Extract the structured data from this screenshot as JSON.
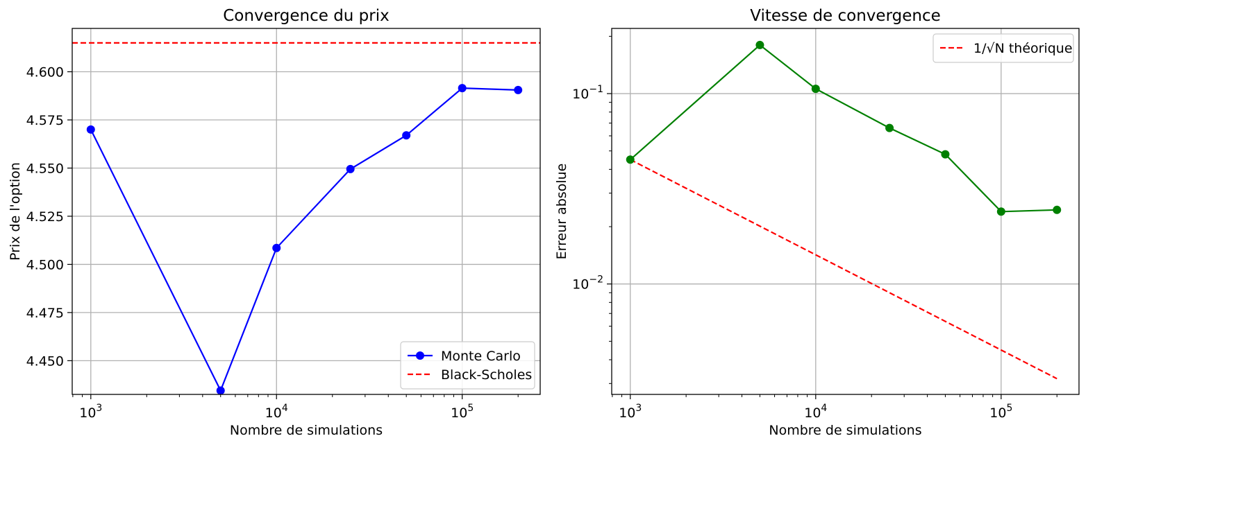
{
  "chart_data": [
    {
      "type": "line",
      "title": "Convergence du prix",
      "xlabel": "Nombre de simulations",
      "ylabel": "Prix de l'option",
      "x_scale": "log",
      "y_scale": "linear",
      "xlim": [
        794,
        263000
      ],
      "ylim": [
        4.4325,
        4.6225
      ],
      "x_ticks": [
        {
          "value": 1000,
          "base": "10",
          "exp": "3"
        },
        {
          "value": 10000,
          "base": "10",
          "exp": "4"
        },
        {
          "value": 100000,
          "base": "10",
          "exp": "5"
        }
      ],
      "y_ticks": [
        {
          "value": 4.45,
          "label": "4.450"
        },
        {
          "value": 4.475,
          "label": "4.475"
        },
        {
          "value": 4.5,
          "label": "4.500"
        },
        {
          "value": 4.525,
          "label": "4.525"
        },
        {
          "value": 4.55,
          "label": "4.550"
        },
        {
          "value": 4.575,
          "label": "4.575"
        },
        {
          "value": 4.6,
          "label": "4.600"
        }
      ],
      "grid": true,
      "legend_position": "lower-right",
      "series": [
        {
          "name": "Monte Carlo",
          "color": "#0000ff",
          "style": "solid",
          "marker": "circle",
          "x": [
            1000,
            5000,
            10000,
            25000,
            50000,
            100000,
            200000
          ],
          "y": [
            4.57,
            4.4345,
            4.5085,
            4.5495,
            4.567,
            4.5915,
            4.5905
          ]
        }
      ],
      "reference_lines": [
        {
          "name": "Black-Scholes",
          "orientation": "horizontal",
          "value": 4.615,
          "color": "#ff0000",
          "style": "dashed"
        }
      ]
    },
    {
      "type": "line",
      "title": "Vitesse de convergence",
      "xlabel": "Nombre de simulations",
      "ylabel": "Erreur absolue",
      "x_scale": "log",
      "y_scale": "log",
      "xlim": [
        794,
        263000
      ],
      "ylim": [
        0.00263,
        0.22
      ],
      "x_ticks": [
        {
          "value": 1000,
          "base": "10",
          "exp": "3"
        },
        {
          "value": 10000,
          "base": "10",
          "exp": "4"
        },
        {
          "value": 100000,
          "base": "10",
          "exp": "5"
        }
      ],
      "y_ticks": [
        {
          "value": 0.01,
          "base": "10",
          "exp": "−2"
        },
        {
          "value": 0.1,
          "base": "10",
          "exp": "−1"
        }
      ],
      "grid": true,
      "legend_position": "upper-right",
      "series": [
        {
          "name": "",
          "color": "#008000",
          "style": "solid",
          "marker": "circle",
          "x": [
            1000,
            5000,
            10000,
            25000,
            50000,
            100000,
            200000
          ],
          "y": [
            0.045,
            0.18,
            0.106,
            0.066,
            0.048,
            0.024,
            0.0245
          ]
        },
        {
          "name": "1/√N théorique",
          "color": "#ff0000",
          "style": "dashed",
          "marker": "none",
          "x": [
            1000,
            200000
          ],
          "y": [
            0.045,
            0.00318
          ]
        }
      ]
    }
  ]
}
